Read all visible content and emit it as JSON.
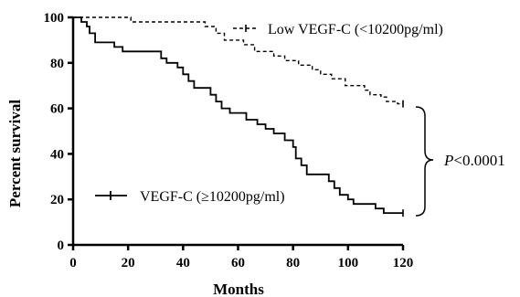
{
  "chart_data": {
    "type": "line",
    "xlabel": "Months",
    "ylabel": "Percent survival",
    "xlim": [
      0,
      120
    ],
    "ylim": [
      0,
      100
    ],
    "xticks": [
      "0",
      "20",
      "40",
      "60",
      "80",
      "100",
      "120"
    ],
    "yticks": [
      "0",
      "20",
      "40",
      "60",
      "80",
      "100"
    ],
    "grid": false,
    "legend_placement": "top-right (Low VEGF-C), bottom-left (VEGF-C)",
    "series": [
      {
        "name": "Low VEGF-C (<10200pg/ml)",
        "style": "dashed",
        "color": "#000000",
        "points": [
          [
            0,
            100
          ],
          [
            21,
            100
          ],
          [
            21,
            98
          ],
          [
            48,
            98
          ],
          [
            48,
            96
          ],
          [
            52,
            96
          ],
          [
            52,
            93
          ],
          [
            55,
            93
          ],
          [
            55,
            90
          ],
          [
            62,
            90
          ],
          [
            62,
            88
          ],
          [
            66,
            88
          ],
          [
            66,
            85
          ],
          [
            73,
            85
          ],
          [
            73,
            83
          ],
          [
            77,
            83
          ],
          [
            77,
            81
          ],
          [
            82,
            81
          ],
          [
            82,
            79
          ],
          [
            87,
            79
          ],
          [
            87,
            77
          ],
          [
            90,
            77
          ],
          [
            90,
            75
          ],
          [
            94,
            75
          ],
          [
            94,
            73
          ],
          [
            99,
            73
          ],
          [
            99,
            70
          ],
          [
            106,
            70
          ],
          [
            106,
            68
          ],
          [
            108,
            68
          ],
          [
            108,
            66
          ],
          [
            112,
            66
          ],
          [
            112,
            65
          ],
          [
            114,
            65
          ],
          [
            114,
            63
          ],
          [
            118,
            63
          ],
          [
            118,
            62
          ],
          [
            120,
            62
          ]
        ]
      },
      {
        "name": "VEGF-C (≥10200pg/ml)",
        "style": "solid",
        "color": "#000000",
        "points": [
          [
            0,
            100
          ],
          [
            3,
            100
          ],
          [
            3,
            98
          ],
          [
            5,
            98
          ],
          [
            5,
            96
          ],
          [
            6,
            96
          ],
          [
            6,
            93
          ],
          [
            8,
            93
          ],
          [
            8,
            89
          ],
          [
            15,
            89
          ],
          [
            15,
            87
          ],
          [
            18,
            87
          ],
          [
            18,
            85
          ],
          [
            32,
            85
          ],
          [
            32,
            82
          ],
          [
            34,
            82
          ],
          [
            34,
            80
          ],
          [
            38,
            80
          ],
          [
            38,
            78
          ],
          [
            40,
            78
          ],
          [
            40,
            75
          ],
          [
            42,
            75
          ],
          [
            42,
            72
          ],
          [
            44,
            72
          ],
          [
            44,
            69
          ],
          [
            50,
            69
          ],
          [
            50,
            66
          ],
          [
            52,
            66
          ],
          [
            52,
            63
          ],
          [
            54,
            63
          ],
          [
            54,
            60
          ],
          [
            57,
            60
          ],
          [
            57,
            58
          ],
          [
            63,
            58
          ],
          [
            63,
            55
          ],
          [
            67,
            55
          ],
          [
            67,
            53
          ],
          [
            70,
            53
          ],
          [
            70,
            51
          ],
          [
            73,
            51
          ],
          [
            73,
            49
          ],
          [
            77,
            49
          ],
          [
            77,
            46
          ],
          [
            80,
            46
          ],
          [
            80,
            43
          ],
          [
            81,
            43
          ],
          [
            81,
            38
          ],
          [
            83,
            38
          ],
          [
            83,
            35
          ],
          [
            85,
            35
          ],
          [
            85,
            31
          ],
          [
            93,
            31
          ],
          [
            93,
            28
          ],
          [
            95,
            28
          ],
          [
            95,
            25
          ],
          [
            97,
            25
          ],
          [
            97,
            22
          ],
          [
            100,
            22
          ],
          [
            100,
            20
          ],
          [
            102,
            20
          ],
          [
            102,
            18
          ],
          [
            110,
            18
          ],
          [
            110,
            16
          ],
          [
            113,
            16
          ],
          [
            113,
            14
          ],
          [
            120,
            14
          ]
        ]
      }
    ],
    "annotations": {
      "p_italic": "P",
      "p_rest": "<0.0001"
    }
  }
}
